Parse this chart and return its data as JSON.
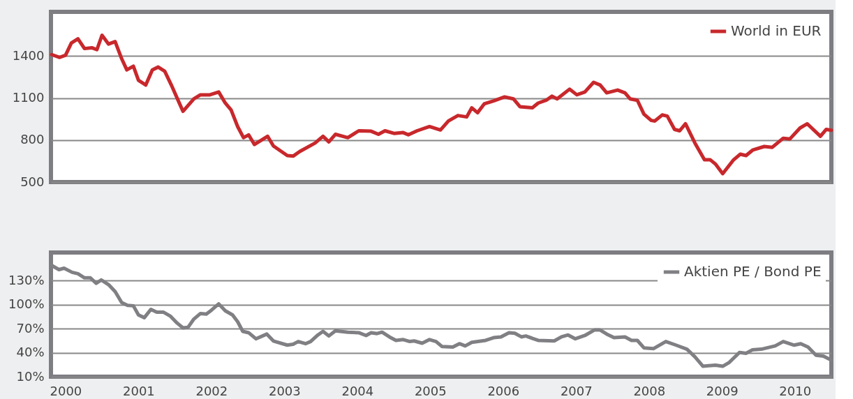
{
  "chart_data": [
    {
      "type": "line",
      "xlim": [
        1999.8,
        2010.5
      ],
      "xticks": [
        2000,
        2001,
        2002,
        2003,
        2004,
        2005,
        2006,
        2007,
        2008,
        2009,
        2010
      ],
      "ylim": [
        500,
        1715
      ],
      "yticks": [
        500,
        800,
        1100,
        1400
      ],
      "grid": "y",
      "legend": "top right",
      "tick_labels": "y",
      "x": [
        1999.81,
        1999.92,
        2000.0,
        2000.08,
        2000.17,
        2000.26,
        2000.36,
        2000.43,
        2000.5,
        2000.59,
        2000.68,
        2000.77,
        2000.84,
        2000.93,
        2001.0,
        2001.1,
        2001.19,
        2001.27,
        2001.36,
        2001.45,
        2001.61,
        2001.76,
        2001.85,
        2001.98,
        2002.1,
        2002.19,
        2002.27,
        2002.36,
        2002.44,
        2002.51,
        2002.59,
        2002.77,
        2002.85,
        2003.04,
        2003.12,
        2003.21,
        2003.42,
        2003.53,
        2003.61,
        2003.7,
        2003.87,
        2004.02,
        2004.19,
        2004.29,
        2004.38,
        2004.51,
        2004.63,
        2004.7,
        2004.82,
        2004.99,
        2005.14,
        2005.25,
        2005.38,
        2005.5,
        2005.57,
        2005.65,
        2005.74,
        2005.87,
        2006.02,
        2006.14,
        2006.23,
        2006.4,
        2006.48,
        2006.59,
        2006.67,
        2006.74,
        2006.91,
        2007.01,
        2007.12,
        2007.24,
        2007.33,
        2007.42,
        2007.57,
        2007.67,
        2007.74,
        2007.84,
        2007.93,
        2008.03,
        2008.08,
        2008.18,
        2008.25,
        2008.35,
        2008.42,
        2008.5,
        2008.63,
        2008.76,
        2008.84,
        2008.91,
        2009.01,
        2009.16,
        2009.25,
        2009.33,
        2009.42,
        2009.58,
        2009.69,
        2009.84,
        2009.93,
        2010.07,
        2010.17,
        2010.35,
        2010.43,
        2010.5
      ],
      "series": [
        {
          "name": "World in EUR",
          "color": "#c8282c",
          "values": [
            1410,
            1390,
            1406,
            1493,
            1523,
            1453,
            1459,
            1445,
            1548,
            1485,
            1503,
            1380,
            1301,
            1327,
            1226,
            1193,
            1301,
            1321,
            1291,
            1193,
            1005,
            1094,
            1123,
            1123,
            1143,
            1064,
            1015,
            896,
            817,
            837,
            768,
            827,
            758,
            689,
            685,
            718,
            778,
            827,
            787,
            841,
            817,
            866,
            863,
            841,
            866,
            847,
            853,
            837,
            866,
            896,
            872,
            936,
            975,
            965,
            1030,
            995,
            1058,
            1080,
            1108,
            1094,
            1038,
            1030,
            1064,
            1084,
            1113,
            1094,
            1163,
            1123,
            1143,
            1212,
            1193,
            1137,
            1157,
            1137,
            1094,
            1084,
            985,
            940,
            936,
            979,
            971,
            876,
            866,
            916,
            778,
            659,
            659,
            629,
            560,
            659,
            699,
            689,
            728,
            754,
            748,
            813,
            807,
            886,
            916,
            827,
            876,
            870
          ]
        }
      ]
    },
    {
      "type": "line",
      "xlim": [
        1999.8,
        2010.5
      ],
      "xticks": [
        2000,
        2001,
        2002,
        2003,
        2004,
        2005,
        2006,
        2007,
        2008,
        2009,
        2010
      ],
      "ylim": [
        10,
        165
      ],
      "yticks": [
        {
          "value": 10,
          "label": "10%"
        },
        {
          "value": 40,
          "label": "40%"
        },
        {
          "value": 70,
          "label": "70%"
        },
        {
          "value": 100,
          "label": "100%"
        },
        {
          "value": 130,
          "label": "130%"
        }
      ],
      "grid": "y",
      "legend": "top right",
      "x": [
        1999.81,
        1999.91,
        1999.98,
        2000.09,
        2000.17,
        2000.26,
        2000.34,
        2000.42,
        2000.49,
        2000.59,
        2000.68,
        2000.77,
        2000.85,
        2000.93,
        2001.0,
        2001.08,
        2001.17,
        2001.25,
        2001.34,
        2001.44,
        2001.53,
        2001.61,
        2001.68,
        2001.76,
        2001.85,
        2001.93,
        2002.0,
        2002.1,
        2002.19,
        2002.29,
        2002.36,
        2002.43,
        2002.51,
        2002.61,
        2002.76,
        2002.85,
        2003.04,
        2003.12,
        2003.19,
        2003.29,
        2003.36,
        2003.46,
        2003.53,
        2003.61,
        2003.7,
        2003.87,
        2004.02,
        2004.12,
        2004.19,
        2004.27,
        2004.34,
        2004.44,
        2004.53,
        2004.63,
        2004.72,
        2004.78,
        2004.89,
        2004.99,
        2005.08,
        2005.16,
        2005.31,
        2005.4,
        2005.48,
        2005.57,
        2005.76,
        2005.87,
        2005.97,
        2006.08,
        2006.16,
        2006.25,
        2006.31,
        2006.48,
        2006.7,
        2006.8,
        2006.89,
        2006.99,
        2007.12,
        2007.25,
        2007.33,
        2007.42,
        2007.52,
        2007.67,
        2007.76,
        2007.84,
        2007.93,
        2008.06,
        2008.23,
        2008.37,
        2008.52,
        2008.63,
        2008.74,
        2008.91,
        2009.01,
        2009.1,
        2009.24,
        2009.33,
        2009.42,
        2009.54,
        2009.73,
        2009.84,
        2009.99,
        2010.08,
        2010.18,
        2010.29,
        2010.39,
        2010.5
      ],
      "series": [
        {
          "name": "Aktien PE / Bond PE",
          "color": "#808084",
          "values": [
            148.9,
            143.7,
            145.4,
            140.3,
            138.6,
            133.4,
            133.4,
            126.6,
            130.7,
            124.9,
            116.3,
            102.6,
            99.1,
            98.5,
            87.1,
            83.7,
            94.0,
            90.6,
            90.6,
            85.4,
            76.9,
            71.0,
            71.7,
            82.0,
            88.9,
            88.2,
            93.0,
            100.9,
            92.3,
            87.1,
            78.6,
            66.6,
            64.9,
            57.3,
            63.2,
            54.6,
            49.4,
            50.5,
            53.9,
            51.2,
            53.9,
            62.1,
            66.6,
            60.8,
            67.3,
            65.6,
            64.9,
            61.4,
            64.9,
            63.8,
            65.6,
            59.7,
            55.3,
            56.3,
            53.9,
            54.6,
            51.8,
            56.3,
            53.9,
            47.7,
            47.0,
            51.2,
            48.4,
            52.9,
            55.3,
            58.7,
            59.7,
            64.9,
            64.2,
            59.7,
            60.8,
            55.3,
            54.6,
            59.7,
            62.1,
            57.3,
            61.4,
            68.3,
            68.3,
            63.2,
            58.7,
            59.7,
            55.3,
            55.3,
            46.0,
            45.0,
            53.9,
            49.4,
            44.3,
            34.7,
            23.0,
            24.4,
            23.0,
            27.8,
            40.2,
            39.2,
            43.6,
            44.3,
            48.4,
            53.9,
            49.4,
            51.2,
            47.0,
            36.8,
            35.7,
            30.6
          ]
        }
      ]
    }
  ]
}
